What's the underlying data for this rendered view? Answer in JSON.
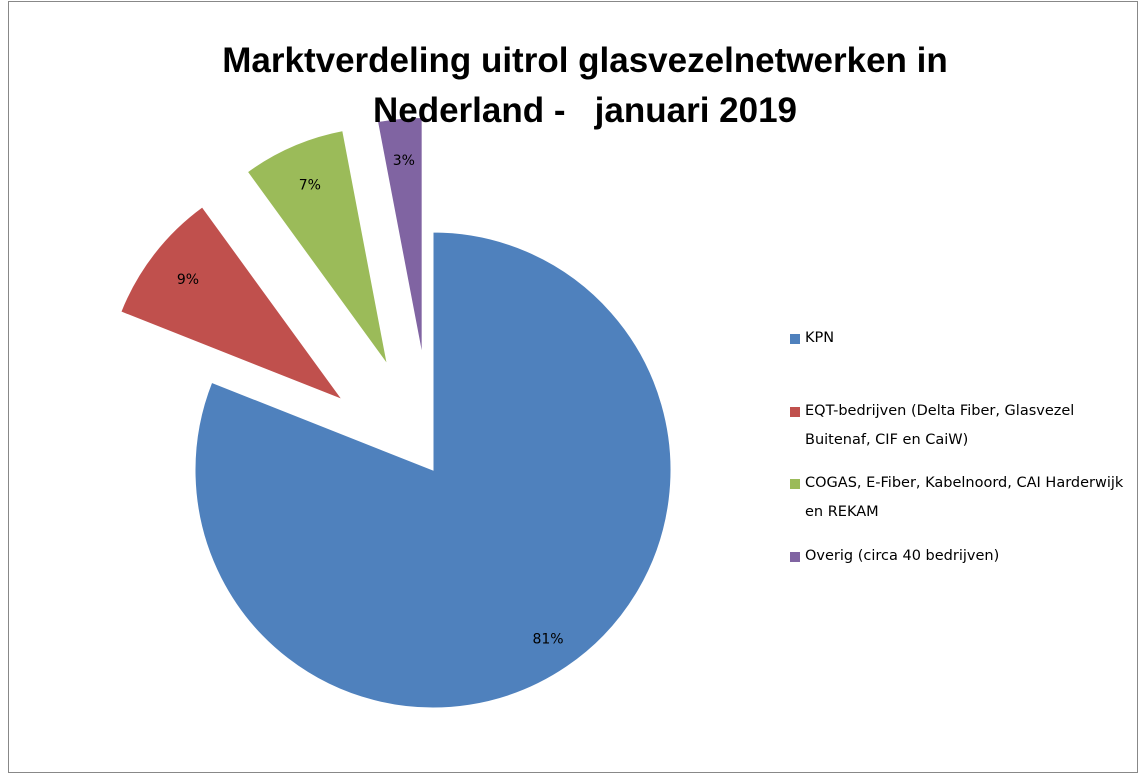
{
  "chart_data": {
    "type": "pie",
    "title": "Marktverdeling uitrol glasvezelnetwerken in Nederland -   januari 2019",
    "categories": [
      "KPN",
      "EQT-bedrijven (Delta Fiber, Glasvezel Buitenaf, CIF en CaiW)",
      "COGAS, E-Fiber, Kabelnoord, CAI Harderwijk en REKAM",
      "Overig (circa 40 bedrijven)"
    ],
    "values": [
      81,
      9,
      7,
      3
    ],
    "value_labels": [
      "81%",
      "9%",
      "7%",
      "3%"
    ],
    "colors": [
      "#4f81bd",
      "#c0504d",
      "#9bbb59",
      "#8064a2"
    ],
    "exploded": [
      false,
      true,
      true,
      true
    ],
    "legend": "right"
  }
}
